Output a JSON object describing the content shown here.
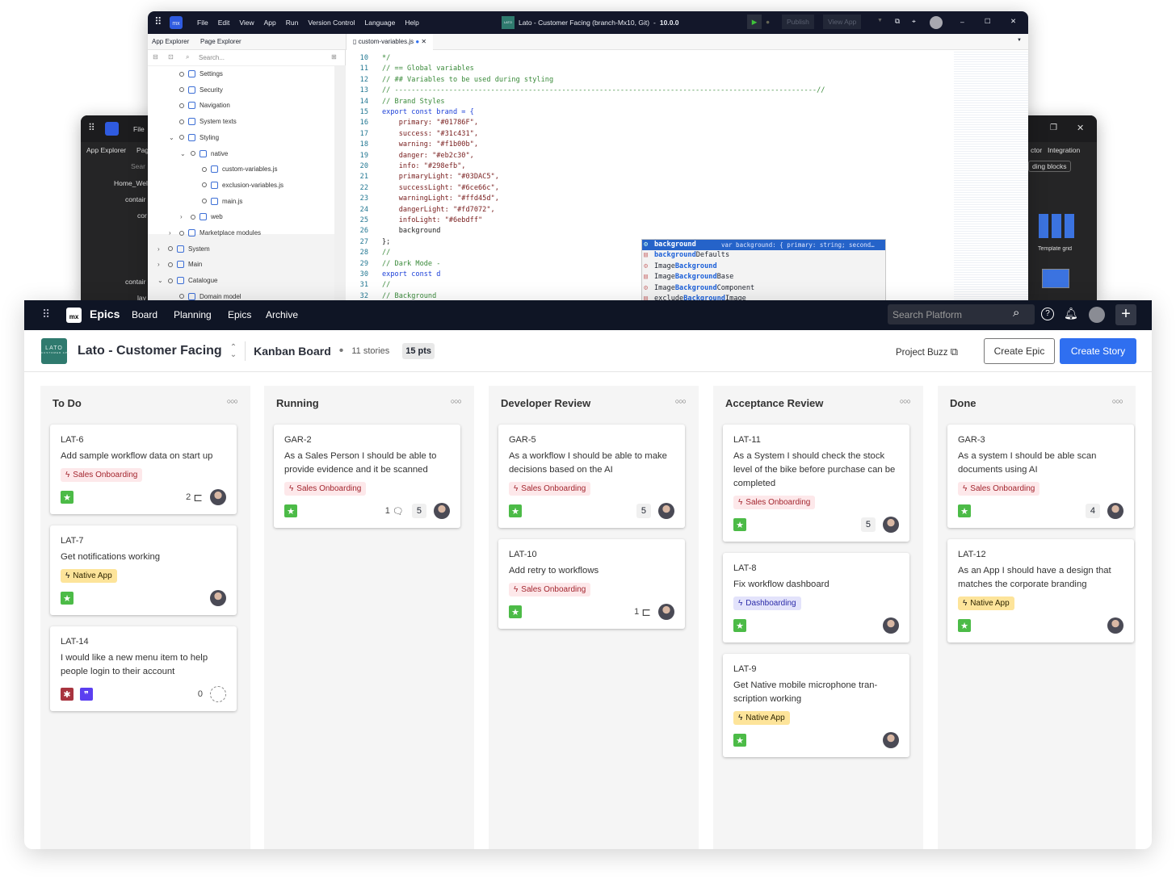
{
  "dark_window": {
    "tab1": "App Explorer",
    "tab2": "Pag",
    "menu": "File",
    "search": "Sear",
    "items": [
      "Home_Wel",
      "contair",
      "cor",
      "contair",
      "lay"
    ],
    "right_tabs": [
      "ctor",
      "Integration"
    ],
    "right_chip": "ding blocks",
    "widget": "Template grid"
  },
  "ide": {
    "menu": [
      "File",
      "Edit",
      "View",
      "App",
      "Run",
      "Version Control",
      "Language",
      "Help"
    ],
    "logo": "mx",
    "project_icon": "LATO",
    "title": "Lato - Customer Facing (branch-Mx10, Git)",
    "version": "10.0.0",
    "publish": "Publish",
    "view_app": "View App",
    "panel_tabs": [
      "App Explorer",
      "Page Explorer"
    ],
    "search_placeholder": "Search...",
    "editor_tab": "custom-variables.js",
    "tree": [
      {
        "label": "Settings",
        "lvl": 2
      },
      {
        "label": "Security",
        "lvl": 2
      },
      {
        "label": "Navigation",
        "lvl": 2
      },
      {
        "label": "System texts",
        "lvl": 2
      },
      {
        "label": "Styling",
        "lvl": 2,
        "exp": "v"
      },
      {
        "label": "native",
        "lvl": 3,
        "exp": "v"
      },
      {
        "label": "custom-variables.js",
        "lvl": 4
      },
      {
        "label": "exclusion-variables.js",
        "lvl": 4
      },
      {
        "label": "main.js",
        "lvl": 4
      },
      {
        "label": "web",
        "lvl": 3,
        "exp": ">"
      },
      {
        "label": "Marketplace modules",
        "lvl": 2,
        "exp": ">"
      },
      {
        "label": "System",
        "lvl": 1,
        "exp": ">"
      },
      {
        "label": "Main",
        "lvl": 1,
        "exp": ">"
      },
      {
        "label": "Catalogue",
        "lvl": 1,
        "exp": "v"
      },
      {
        "label": "Domain model",
        "lvl": 2
      }
    ],
    "code": [
      {
        "n": "10",
        "t": "*/",
        "k": "cm"
      },
      {
        "n": "11",
        "t": "// == Global variables",
        "k": "cm"
      },
      {
        "n": "12",
        "t": "// ## Variables to be used during styling",
        "k": "cm"
      },
      {
        "n": "13",
        "t": "// -----------------------------------------------------------------------------------------------------//",
        "k": "cm"
      },
      {
        "n": "14",
        "t": "// Brand Styles",
        "k": "cm"
      },
      {
        "n": "15",
        "t": "export const brand = {",
        "k": "ex"
      },
      {
        "n": "16",
        "t": "    primary: \"#01786F\",",
        "k": "kv"
      },
      {
        "n": "17",
        "t": "    success: \"#31c431\",",
        "k": "kv"
      },
      {
        "n": "18",
        "t": "    warning: \"#f1b00b\",",
        "k": "kv"
      },
      {
        "n": "19",
        "t": "    danger: \"#eb2c30\",",
        "k": "kv"
      },
      {
        "n": "20",
        "t": "    info: \"#298efb\",",
        "k": "kv"
      },
      {
        "n": "21",
        "t": "    primaryLight: \"#03DAC5\",",
        "k": "kv"
      },
      {
        "n": "22",
        "t": "    successLight: \"#6ce66c\",",
        "k": "kv"
      },
      {
        "n": "23",
        "t": "    warningLight: \"#ffd45d\",",
        "k": "kv"
      },
      {
        "n": "24",
        "t": "    dangerLight: \"#fd7072\",",
        "k": "kv"
      },
      {
        "n": "25",
        "t": "    infoLight: \"#6ebdff\"",
        "k": "kv"
      },
      {
        "n": "26",
        "t": "    background",
        "k": "pl"
      },
      {
        "n": "27",
        "t": "};",
        "k": "pl"
      },
      {
        "n": "28",
        "t": "//",
        "k": "cm"
      },
      {
        "n": "29",
        "t": "// Dark Mode -",
        "k": "cm"
      },
      {
        "n": "30",
        "t": "export const d",
        "k": "ex"
      },
      {
        "n": "31",
        "t": "//",
        "k": "cm"
      },
      {
        "n": "32",
        "t": "// Background",
        "k": "cm"
      }
    ],
    "autocomplete": [
      {
        "hl": "background",
        "rest": "",
        "detail": "var background: { primary: string; second…"
      },
      {
        "pre": "",
        "hl": "background",
        "rest": "Defaults"
      },
      {
        "pre": "Image",
        "hl": "Background",
        "rest": ""
      },
      {
        "pre": "Image",
        "hl": "Background",
        "rest": "Base"
      },
      {
        "pre": "Image",
        "hl": "Background",
        "rest": "Component"
      },
      {
        "pre": "exclude",
        "hl": "Background",
        "rest": "Image"
      }
    ]
  },
  "kanban": {
    "nav": {
      "logo": "mx",
      "app": "Epics",
      "links": [
        "Board",
        "Planning",
        "Epics",
        "Archive"
      ],
      "search_placeholder": "Search Platform"
    },
    "header": {
      "logo": "LATO",
      "logo_sub": "CUSTOMER APP",
      "project": "Lato - Customer Facing",
      "board": "Kanban Board",
      "stories": "11 stories",
      "points": "15 pts",
      "buzz": "Project Buzz",
      "create_epic": "Create Epic",
      "create_story": "Create Story"
    },
    "colors": {
      "accent": "#2f6ff0",
      "nav": "#0f1525",
      "story": "#4cbb47",
      "bug": "#a8343f",
      "quote": "#5b3ff0"
    },
    "columns": [
      {
        "title": "To Do",
        "cards": [
          {
            "id": "LAT-6",
            "title": "Add sample workflow data on start up",
            "tag": "Sales Onboarding",
            "types": [
              "story"
            ],
            "subtasks": "2"
          },
          {
            "id": "LAT-7",
            "title": "Get notifications working",
            "tag": "Native App",
            "types": [
              "story"
            ]
          },
          {
            "id": "LAT-14",
            "title": "I would like a new menu item to help people login to their account",
            "types": [
              "bug",
              "quote"
            ],
            "count": "0",
            "unassigned": true
          }
        ]
      },
      {
        "title": "Running",
        "cards": [
          {
            "id": "GAR-2",
            "title": "As a Sales Person I should be able to provide evidence and it be scanned",
            "tag": "Sales Onboarding",
            "types": [
              "story"
            ],
            "comments": "1",
            "points": "5"
          }
        ]
      },
      {
        "title": "Developer Review",
        "cards": [
          {
            "id": "GAR-5",
            "title": "As a workflow I should be able to make decisions based on the AI",
            "tag": "Sales Onboarding",
            "types": [
              "story"
            ],
            "points": "5"
          },
          {
            "id": "LAT-10",
            "title": "Add retry to workflows",
            "tag": "Sales Onboarding",
            "types": [
              "story"
            ],
            "subtasks": "1"
          }
        ]
      },
      {
        "title": "Acceptance Review",
        "cards": [
          {
            "id": "LAT-11",
            "title": "As a System I should check the stock level of the bike before purchase can be completed",
            "tag": "Sales Onboarding",
            "types": [
              "story"
            ],
            "points": "5"
          },
          {
            "id": "LAT-8",
            "title": "Fix workflow dashboard",
            "tag": "Dashboarding",
            "types": [
              "story"
            ]
          },
          {
            "id": "LAT-9",
            "title": "Get Native mobile microphone tran-scription working",
            "tag": "Native App",
            "types": [
              "story"
            ]
          }
        ]
      },
      {
        "title": "Done",
        "cards": [
          {
            "id": "GAR-3",
            "title": "As a system I should be able scan documents using AI",
            "tag": "Sales Onboarding",
            "types": [
              "story"
            ],
            "points": "4"
          },
          {
            "id": "LAT-12",
            "title": "As an App I should have a design that matches the corporate branding",
            "tag": "Native App",
            "types": [
              "story"
            ]
          }
        ]
      }
    ]
  }
}
